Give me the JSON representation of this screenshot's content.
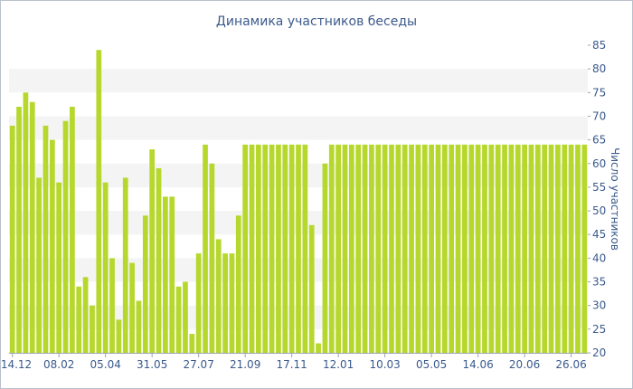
{
  "chart_data": {
    "type": "bar",
    "title": "Динамика участников беседы",
    "ylabel": "Число участников",
    "xlabel": "",
    "ylim": [
      20,
      85
    ],
    "yticks": [
      20,
      25,
      30,
      35,
      40,
      45,
      50,
      55,
      60,
      65,
      70,
      75,
      80,
      85
    ],
    "y_axis_position": "right",
    "grid": "alternating-horizontal-bands",
    "bar_color": "#b6d82d",
    "x_tick_labels": [
      {
        "label": "14.12",
        "index": 0
      },
      {
        "label": "08.02",
        "index": 7
      },
      {
        "label": "05.04",
        "index": 14
      },
      {
        "label": "31.05",
        "index": 21
      },
      {
        "label": "27.07",
        "index": 28
      },
      {
        "label": "21.09",
        "index": 35
      },
      {
        "label": "17.11",
        "index": 42
      },
      {
        "label": "12.01",
        "index": 49
      },
      {
        "label": "10.03",
        "index": 56
      },
      {
        "label": "05.05",
        "index": 63
      },
      {
        "label": "14.06",
        "index": 70
      },
      {
        "label": "20.06",
        "index": 77
      },
      {
        "label": "26.06",
        "index": 84
      }
    ],
    "values": [
      68,
      72,
      75,
      73,
      57,
      68,
      65,
      56,
      69,
      72,
      34,
      36,
      30,
      84,
      56,
      40,
      27,
      57,
      39,
      31,
      49,
      63,
      59,
      53,
      53,
      34,
      35,
      24,
      41,
      64,
      60,
      44,
      41,
      41,
      49,
      64,
      64,
      64,
      64,
      64,
      64,
      64,
      64,
      64,
      64,
      47,
      22,
      60,
      64,
      64,
      64,
      64,
      64,
      64,
      64,
      64,
      64,
      64,
      64,
      64,
      64,
      64,
      64,
      64,
      64,
      64,
      64,
      64,
      64,
      64,
      64,
      64,
      64,
      64,
      64,
      64,
      64,
      64,
      64,
      64,
      64,
      64,
      64,
      64,
      64,
      64,
      64
    ]
  }
}
